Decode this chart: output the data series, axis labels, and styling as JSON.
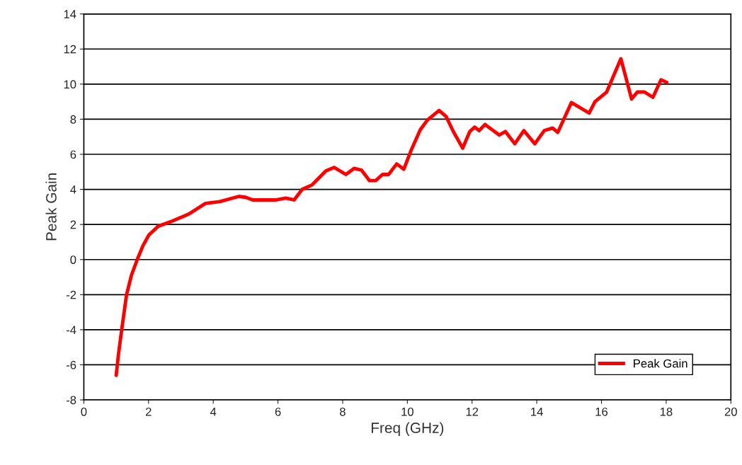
{
  "chart_data": {
    "type": "line",
    "xlabel": "Freq (GHz)",
    "ylabel": "Peak Gain",
    "xlim": [
      0,
      20
    ],
    "xticks": [
      0,
      2,
      4,
      6,
      8,
      10,
      12,
      14,
      16,
      18,
      20
    ],
    "ylim": [
      -8,
      14
    ],
    "yticks": [
      -8,
      -6,
      -4,
      -2,
      0,
      2,
      4,
      6,
      8,
      10,
      12,
      14
    ],
    "grid": "y",
    "legend": "bottom right",
    "marker": "none",
    "line_style": "solid",
    "series": [
      {
        "name": "Peak Gain",
        "color": "#ff0000",
        "x": [
          1.0,
          1.07,
          1.17,
          1.32,
          1.47,
          1.65,
          1.83,
          2.01,
          2.3,
          2.74,
          3.25,
          3.76,
          4.2,
          4.79,
          5.0,
          5.22,
          5.95,
          6.24,
          6.5,
          6.75,
          7.05,
          7.48,
          7.74,
          8.1,
          8.36,
          8.58,
          8.83,
          9.02,
          9.23,
          9.42,
          9.67,
          9.89,
          10.11,
          10.4,
          10.62,
          10.98,
          11.2,
          11.42,
          11.71,
          11.93,
          12.08,
          12.22,
          12.4,
          12.84,
          13.03,
          13.32,
          13.6,
          13.94,
          14.23,
          14.49,
          14.65,
          15.07,
          15.62,
          15.8,
          16.16,
          16.6,
          16.93,
          17.11,
          17.33,
          17.59,
          17.84,
          18.02
        ],
        "values": [
          -6.6,
          -5.4,
          -4.0,
          -2.0,
          -0.9,
          0,
          0.8,
          1.4,
          1.9,
          2.2,
          2.6,
          3.2,
          3.3,
          3.6,
          3.55,
          3.4,
          3.4,
          3.5,
          3.4,
          4.0,
          4.25,
          5.05,
          5.25,
          4.85,
          5.2,
          5.1,
          4.5,
          4.5,
          4.85,
          4.85,
          5.45,
          5.15,
          6.2,
          7.4,
          7.95,
          8.5,
          8.15,
          7.3,
          6.35,
          7.3,
          7.55,
          7.35,
          7.7,
          7.1,
          7.3,
          6.6,
          7.35,
          6.6,
          7.35,
          7.5,
          7.25,
          8.95,
          8.35,
          9.0,
          9.55,
          11.45,
          9.15,
          9.55,
          9.55,
          9.25,
          10.25,
          10.1
        ]
      }
    ]
  }
}
